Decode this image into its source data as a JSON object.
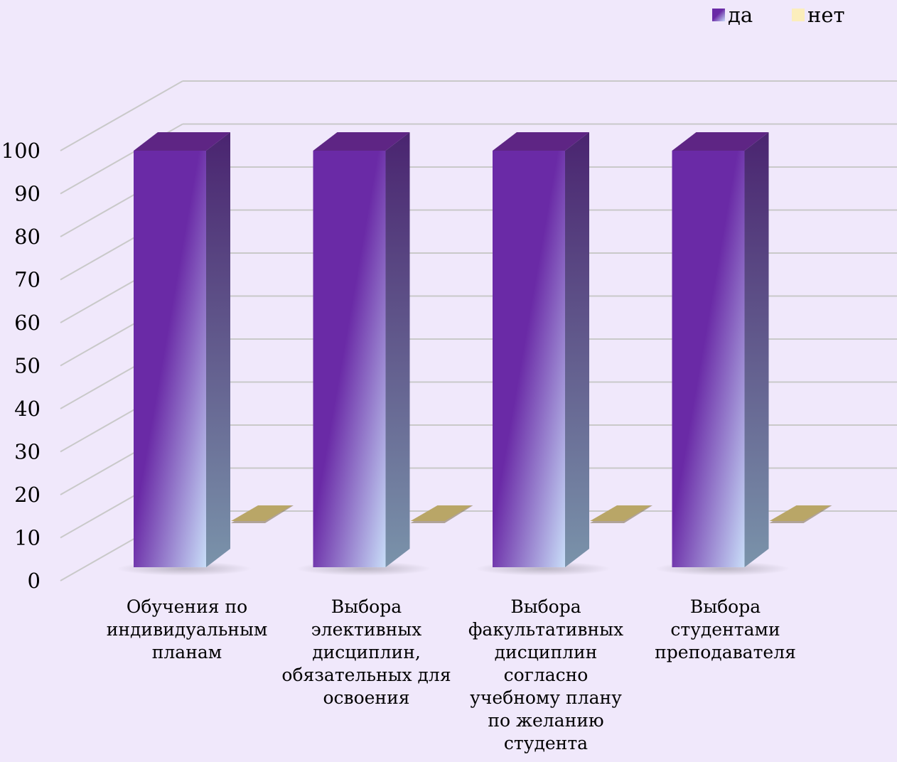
{
  "colors": {
    "background": "#f0e8fb",
    "yes_top": "#5e2584",
    "yes_front_dark": "#6a2aa6",
    "yes_front_light": "#c8ddf8",
    "yes_side_top": "#4a2470",
    "yes_side_bottom": "#7a93aa",
    "no_top": "#b9a667",
    "no_shadow": "#7c6a48",
    "legend_no": "#fbeebc",
    "grid": "#c9c9c9"
  },
  "chart_data": {
    "type": "bar",
    "style": "3d-clustered-column",
    "categories": [
      [
        "Обучения по",
        "индивидуальным",
        "планам"
      ],
      [
        "Выбора",
        "элективных",
        "дисциплин,",
        "обязательных для",
        "освоения"
      ],
      [
        "Выбора",
        "факультативных",
        "дисциплин",
        "согласно",
        "учебному плану",
        "по желанию",
        "студента"
      ],
      [
        "Выбора",
        "студентами",
        "преподавателя"
      ]
    ],
    "series": [
      {
        "name": "да",
        "values": [
          100,
          100,
          100,
          100
        ]
      },
      {
        "name": "нет",
        "values": [
          0,
          0,
          0,
          0
        ]
      }
    ],
    "ylim": [
      0,
      100
    ],
    "yticks": [
      "0",
      "10",
      "20",
      "30",
      "40",
      "50",
      "60",
      "70",
      "80",
      "90",
      "100"
    ],
    "grid": true,
    "legend_position": "top-right"
  }
}
